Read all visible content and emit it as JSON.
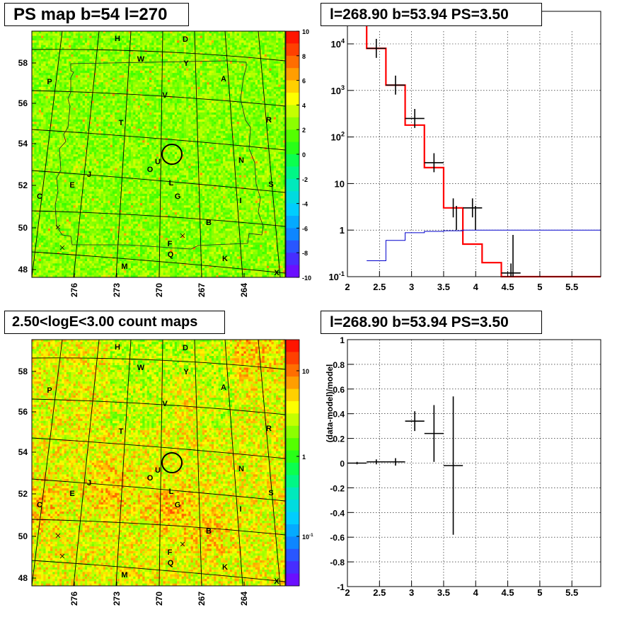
{
  "chart_data": [
    {
      "type": "heatmap",
      "title": "PS map b=54 l=270",
      "y_ticks": [
        "48",
        "50",
        "52",
        "54",
        "56",
        "58"
      ],
      "x_ticks": [
        "276",
        "273",
        "270",
        "267",
        "264"
      ],
      "colorbar_ticks": [
        "10",
        "8",
        "6",
        "4",
        "2",
        "0",
        "-2",
        "-4",
        "-6",
        "-8",
        "-10"
      ],
      "colorbar_range": [
        -10,
        10
      ],
      "colormap": [
        "#7d00ff",
        "#3b36ff",
        "#0a8cff",
        "#00ccff",
        "#00e6c8",
        "#00ff66",
        "#33ff00",
        "#99ff00",
        "#ffff00",
        "#ffa500",
        "#ff4d00",
        "#ff0000"
      ],
      "source_labels": [
        "H",
        "D",
        "W",
        "Y",
        "A",
        "P",
        "V",
        "R",
        "T",
        "U",
        "N",
        "O",
        "J",
        "L",
        "S",
        "E",
        "G",
        "C",
        "I",
        "B",
        "F",
        "Q",
        "K",
        "M",
        "X"
      ],
      "circle_marker": "l=268.90 b=53.94"
    },
    {
      "type": "line",
      "title": "l=268.90 b=53.94 PS=3.50",
      "x_ticks": [
        "2",
        "2.5",
        "3",
        "3.5",
        "4",
        "4.5",
        "5",
        "5.5"
      ],
      "y_ticks": [
        "10^-1",
        "1",
        "10",
        "10^2",
        "10^3",
        "10^4"
      ],
      "xlim": [
        2.0,
        5.95
      ],
      "ylim": [
        0.1,
        50000
      ],
      "y_scale": "log",
      "grid": true,
      "series": [
        {
          "color": "#ff0000",
          "bins": [
            [
              2.0,
              2.3,
              33000
            ],
            [
              2.3,
              2.6,
              8000
            ],
            [
              2.6,
              2.9,
              1300
            ],
            [
              2.9,
              3.2,
              180
            ],
            [
              3.2,
              3.5,
              22
            ],
            [
              3.5,
              3.8,
              3.0
            ],
            [
              3.8,
              4.1,
              0.5
            ],
            [
              4.1,
              4.4,
              0.2
            ],
            [
              4.4,
              5.95,
              0.1
            ]
          ]
        },
        {
          "color": "#0000cc",
          "bins": [
            [
              2.3,
              2.6,
              0.22
            ],
            [
              2.6,
              2.9,
              0.6
            ],
            [
              2.9,
              3.2,
              0.88
            ],
            [
              3.2,
              3.5,
              0.94
            ],
            [
              3.5,
              3.8,
              0.97
            ],
            [
              3.8,
              5.95,
              1.0
            ]
          ]
        },
        {
          "color": "#000000",
          "points": [
            [
              2.45,
              8000,
              0.15,
              0
            ],
            [
              2.75,
              1300,
              0.15,
              0
            ],
            [
              3.05,
              250,
              0.15,
              0
            ],
            [
              3.35,
              28,
              0.15,
              0
            ],
            [
              3.65,
              3.0,
              0.0,
              0
            ],
            [
              3.95,
              3.0,
              0.15,
              0
            ],
            [
              4.55,
              0.12,
              0.15,
              0
            ]
          ]
        }
      ]
    },
    {
      "type": "heatmap",
      "title": "2.50<logE<3.00 count maps",
      "y_ticks": [
        "48",
        "50",
        "52",
        "54",
        "56",
        "58"
      ],
      "x_ticks": [
        "276",
        "273",
        "270",
        "267",
        "264"
      ],
      "colorbar_ticks": [
        "10",
        "1",
        "10^-1"
      ],
      "colorbar_scale": "log",
      "colormap": [
        "#7d00ff",
        "#3b36ff",
        "#0a8cff",
        "#00ccff",
        "#00e6c8",
        "#00ff66",
        "#33ff00",
        "#99ff00",
        "#ffff00",
        "#ffa500",
        "#ff4d00",
        "#ff0000"
      ],
      "source_labels": [
        "H",
        "D",
        "W",
        "Y",
        "A",
        "P",
        "V",
        "R",
        "T",
        "U",
        "N",
        "O",
        "J",
        "L",
        "S",
        "E",
        "G",
        "C",
        "I",
        "B",
        "F",
        "Q",
        "K",
        "M",
        "X"
      ],
      "circle_marker": "l=268.90 b=53.94"
    },
    {
      "type": "scatter",
      "title": "l=268.90 b=53.94 PS=3.50",
      "ylabel": "(data-model)/model",
      "x_ticks": [
        "2",
        "2.5",
        "3",
        "3.5",
        "4",
        "4.5",
        "5",
        "5.5"
      ],
      "y_ticks": [
        "-1",
        "-0.8",
        "-0.6",
        "-0.4",
        "-0.2",
        "0",
        "0.2",
        "0.4",
        "0.6",
        "0.8",
        "1"
      ],
      "xlim": [
        2.0,
        5.95
      ],
      "ylim": [
        -1,
        1
      ],
      "grid": true,
      "points": [
        {
          "x": 2.15,
          "y": 0.0,
          "xerr": 0.15,
          "yerr": 0.01
        },
        {
          "x": 2.45,
          "y": 0.01,
          "xerr": 0.15,
          "yerr": 0.02
        },
        {
          "x": 2.75,
          "y": 0.01,
          "xerr": 0.15,
          "yerr": 0.03
        },
        {
          "x": 3.05,
          "y": 0.34,
          "xerr": 0.15,
          "yerr": 0.08
        },
        {
          "x": 3.35,
          "y": 0.24,
          "xerr": 0.15,
          "yerr": 0.23
        },
        {
          "x": 3.65,
          "y": -0.02,
          "xerr": 0.15,
          "yerr": 0.56
        }
      ]
    }
  ]
}
